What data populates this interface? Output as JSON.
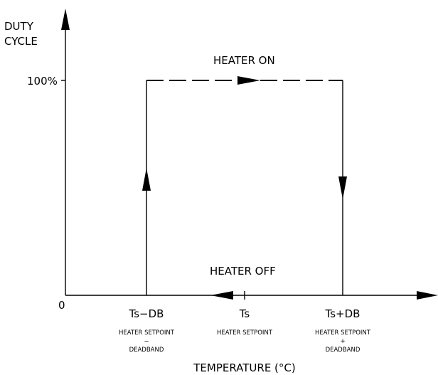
{
  "y_axis": {
    "label_line1": "DUTY",
    "label_line2": "CYCLE",
    "tick_label": "100%"
  },
  "x_axis": {
    "origin_label": "0",
    "title": "TEMPERATURE (°C)"
  },
  "states": {
    "on_label": "HEATER ON",
    "off_label": "HEATER OFF"
  },
  "points": [
    {
      "symbol": "Ts−DB",
      "desc_line1": "HEATER SETPOINT",
      "desc_line2": "−",
      "desc_line3": "DEADBAND"
    },
    {
      "symbol": "Ts",
      "desc_line1": "HEATER SETPOINT"
    },
    {
      "symbol": "Ts+DB",
      "desc_line1": "HEATER SETPOINT",
      "desc_line2": "+",
      "desc_line3": "DEADBAND"
    }
  ],
  "colors": {
    "line": "#000000",
    "background": "#ffffff"
  }
}
